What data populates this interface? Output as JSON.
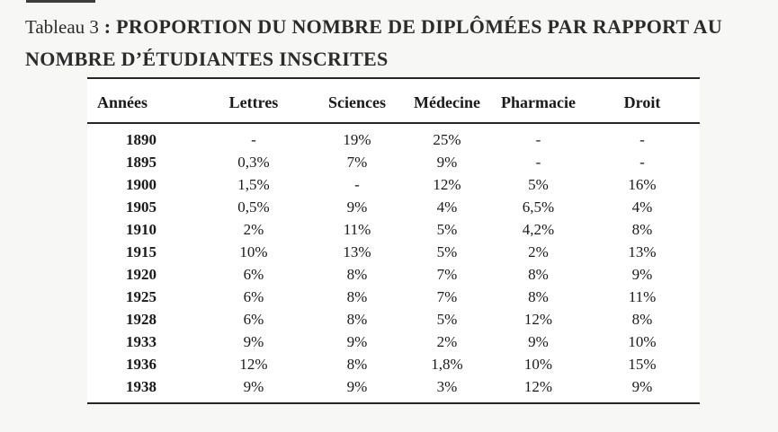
{
  "page": {
    "background_color": "#f7f7f6",
    "table_background_color": "#ffffff",
    "text_color": "#1a1a1a",
    "title_color": "#2b2b2b",
    "border_color": "#262626"
  },
  "caption": {
    "label": "Tableau 3",
    "title": ": PROPORTION DU NOMBRE DE DIPLÔMÉES PAR RAPPORT AU NOMBRE D’ÉTUDIANTES INSCRITES"
  },
  "chart_data": {
    "type": "table",
    "title": "Tableau 3 : PROPORTION DU NOMBRE DE DIPLÔMÉES PAR RAPPORT AU NOMBRE D’ÉTUDIANTES INSCRITES",
    "columns": [
      "Années",
      "Lettres",
      "Sciences",
      "Médecine",
      "Pharmacie",
      "Droit"
    ],
    "rows": [
      [
        "1890",
        "-",
        "19%",
        "25%",
        "-",
        "-"
      ],
      [
        "1895",
        "0,3%",
        "7%",
        "9%",
        "-",
        "-"
      ],
      [
        "1900",
        "1,5%",
        "-",
        "12%",
        "5%",
        "16%"
      ],
      [
        "1905",
        "0,5%",
        "9%",
        "4%",
        "6,5%",
        "4%"
      ],
      [
        "1910",
        "2%",
        "11%",
        "5%",
        "4,2%",
        "8%"
      ],
      [
        "1915",
        "10%",
        "13%",
        "5%",
        "2%",
        "13%"
      ],
      [
        "1920",
        "6%",
        "8%",
        "7%",
        "8%",
        "9%"
      ],
      [
        "1925",
        "6%",
        "8%",
        "7%",
        "8%",
        "11%"
      ],
      [
        "1928",
        "6%",
        "8%",
        "5%",
        "12%",
        "8%"
      ],
      [
        "1933",
        "9%",
        "9%",
        "2%",
        "9%",
        "10%"
      ],
      [
        "1936",
        "12%",
        "8%",
        "1,8%",
        "10%",
        "15%"
      ],
      [
        "1938",
        "9%",
        "9%",
        "3%",
        "12%",
        "9%"
      ]
    ]
  }
}
